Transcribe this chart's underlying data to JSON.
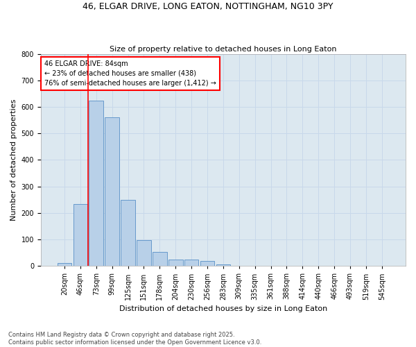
{
  "title": "46, ELGAR DRIVE, LONG EATON, NOTTINGHAM, NG10 3PY",
  "subtitle": "Size of property relative to detached houses in Long Eaton",
  "xlabel": "Distribution of detached houses by size in Long Eaton",
  "ylabel": "Number of detached properties",
  "categories": [
    "20sqm",
    "46sqm",
    "73sqm",
    "99sqm",
    "125sqm",
    "151sqm",
    "178sqm",
    "204sqm",
    "230sqm",
    "256sqm",
    "283sqm",
    "309sqm",
    "335sqm",
    "361sqm",
    "388sqm",
    "414sqm",
    "440sqm",
    "466sqm",
    "493sqm",
    "519sqm",
    "545sqm"
  ],
  "values": [
    10,
    233,
    623,
    560,
    250,
    97,
    53,
    25,
    25,
    18,
    5,
    1,
    0,
    0,
    0,
    0,
    0,
    0,
    0,
    0,
    0
  ],
  "bar_color": "#b8d0e8",
  "bar_edge_color": "#6699cc",
  "grid_color": "#c8d8ea",
  "background_color": "#dce8f0",
  "annotation_text": "46 ELGAR DRIVE: 84sqm\n← 23% of detached houses are smaller (438)\n76% of semi-detached houses are larger (1,412) →",
  "footer_text": "Contains HM Land Registry data © Crown copyright and database right 2025.\nContains public sector information licensed under the Open Government Licence v3.0.",
  "ylim": [
    0,
    800
  ],
  "yticks": [
    0,
    100,
    200,
    300,
    400,
    500,
    600,
    700,
    800
  ],
  "red_line_x": 1.5,
  "title_fontsize": 9,
  "subtitle_fontsize": 8,
  "xlabel_fontsize": 8,
  "ylabel_fontsize": 8,
  "tick_fontsize": 7,
  "footer_fontsize": 6,
  "annotation_fontsize": 7
}
